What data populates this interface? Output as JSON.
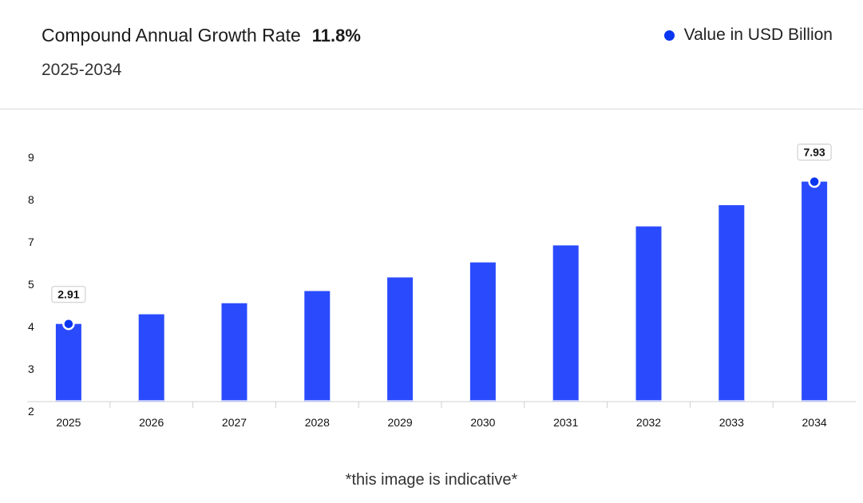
{
  "header": {
    "title": "Compound Annual Growth Rate",
    "cagr": "11.8%",
    "period": "2025-2034"
  },
  "legend": {
    "label": "Value in USD Billion",
    "color": "#0a36f0"
  },
  "footnote": "*this image is indicative*",
  "colors": {
    "bar": "#2a4bfd",
    "marker": "#0a36f0",
    "axis": "#d0d0d0",
    "baseline_stripe": "#b9c3ff"
  },
  "chart_data": {
    "type": "bar",
    "title": "Compound Annual Growth Rate",
    "xlabel": "",
    "ylabel": "",
    "categories": [
      "2025",
      "2026",
      "2027",
      "2028",
      "2029",
      "2030",
      "2031",
      "2032",
      "2033",
      "2034"
    ],
    "series": [
      {
        "name": "Value in USD Billion",
        "values": [
          2.91,
          3.25,
          3.64,
          4.07,
          4.55,
          5.08,
          5.68,
          6.35,
          7.1,
          7.93
        ]
      }
    ],
    "y_tick_labels": [
      "2",
      "3",
      "4",
      "5",
      "7",
      "8",
      "9"
    ],
    "data_labels": [
      {
        "category": "2025",
        "text": "2.91"
      },
      {
        "category": "2034",
        "text": "7.93"
      }
    ],
    "grid": false,
    "legend_position": "top-right"
  }
}
